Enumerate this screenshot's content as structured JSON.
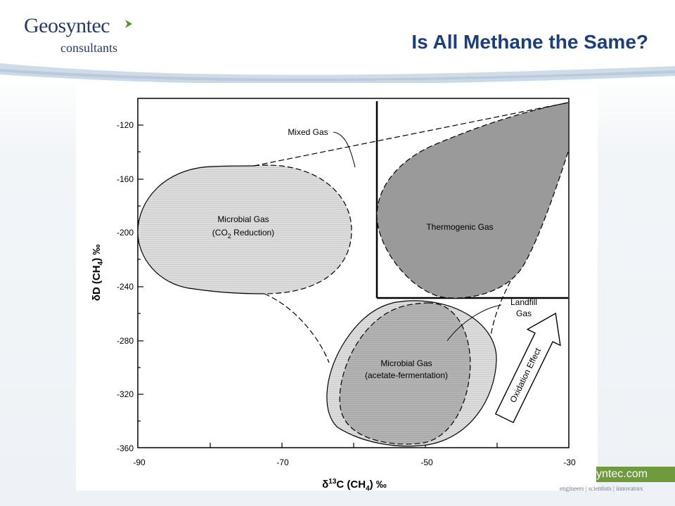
{
  "header": {
    "logo_name": "Geosyntec",
    "logo_sub": "consultants",
    "title": "Is All Methane the Same?"
  },
  "footer": {
    "url_fragment": "yntec.com",
    "tagline": "engineers | scientists | innovators"
  },
  "colors": {
    "brand_blue": "#243b6b",
    "title_blue": "#1c3f7c",
    "logo_green": "#5b8f2f",
    "footer_green": "#6f9a3e",
    "thermogenic_fill": "#9a9a9a",
    "microbial_fill": "#dcdcdc",
    "acetate_fill": "#b4b4b4"
  },
  "diagram": {
    "x_axis_label_prefix": "δ",
    "x_axis_label_sup": "13",
    "x_axis_label_main": "C (CH",
    "x_axis_label_sub": "4",
    "x_axis_label_suffix": ") ‰",
    "y_axis_label_prefix": "δD (CH",
    "y_axis_label_sub": "4",
    "y_axis_label_suffix": ") ‰",
    "x_ticks": [
      "-90",
      "-70",
      "-50",
      "-30"
    ],
    "y_ticks": [
      "-120",
      "-160",
      "-200",
      "-240",
      "-280",
      "-320",
      "-360"
    ],
    "labels": {
      "mixed_gas": "Mixed Gas",
      "microbial_co2_line1": "Microbial Gas",
      "microbial_co2_line2_a": "(CO",
      "microbial_co2_line2_sub": "2",
      "microbial_co2_line2_b": " Reduction)",
      "thermogenic": "Thermogenic Gas",
      "landfill_line1": "Landfill",
      "landfill_line2": "Gas",
      "microbial_acetate_line1": "Microbial Gas",
      "microbial_acetate_line2": "(acetate-fermentation)",
      "oxidation": "Oxidation Effect"
    }
  }
}
